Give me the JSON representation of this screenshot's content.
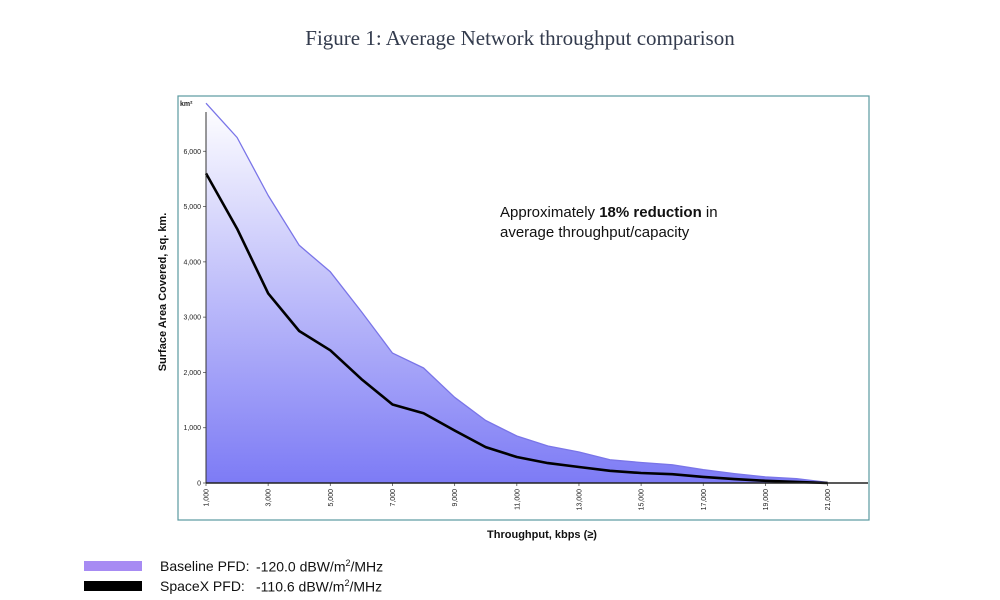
{
  "figure_title": "Figure 1: Average Network throughput comparison",
  "legend": [
    {
      "label": "Baseline PFD:",
      "value": "-120.0 dBW/m",
      "sup": "2",
      "unit": "/MHz",
      "color": "#a78bf3"
    },
    {
      "label": "SpaceX  PFD:",
      "value": "-110.6 dBW/m",
      "sup": "2",
      "unit": "/MHz",
      "color": "#000000"
    }
  ],
  "chart_data": {
    "type": "area",
    "xlabel": "Throughput, kbps (≥)",
    "ylabel": "Surface Area Covered, sq. km.",
    "yunit_label": "km²",
    "xlim": [
      1000,
      22300
    ],
    "ylim": [
      0,
      7000
    ],
    "xticks": [
      "1,000",
      "3,000",
      "5,000",
      "7,000",
      "9,000",
      "11,000",
      "13,000",
      "15,000",
      "17,000",
      "19,000",
      "21,000"
    ],
    "yticks": [
      "0",
      "1,000",
      "2,000",
      "3,000",
      "4,000",
      "5,000",
      "6,000"
    ],
    "annotation": {
      "pre": "Approximately ",
      "bold": "18% reduction",
      "post": " in",
      "line2": "average throughput/capacity"
    },
    "series": [
      {
        "name": "Baseline PFD",
        "color": "#7a75e8",
        "x": [
          1000,
          2000,
          3000,
          4000,
          5000,
          6000,
          7000,
          8000,
          9000,
          10000,
          11000,
          12000,
          13000,
          14000,
          15000,
          16000,
          17000,
          18000,
          19000,
          20000,
          21000
        ],
        "y": [
          6870,
          6250,
          5200,
          4300,
          3820,
          3100,
          2350,
          2080,
          1550,
          1130,
          850,
          670,
          560,
          420,
          370,
          330,
          240,
          170,
          110,
          80,
          10
        ]
      },
      {
        "name": "SpaceX PFD",
        "color": "#000000",
        "x": [
          1000,
          2000,
          3000,
          4000,
          5000,
          6000,
          7000,
          8000,
          9000,
          10000,
          11000,
          12000,
          13000,
          14000,
          15000,
          16000,
          17000,
          18000,
          19000,
          20000,
          21000
        ],
        "y": [
          5600,
          4600,
          3430,
          2750,
          2400,
          1880,
          1420,
          1260,
          950,
          650,
          470,
          360,
          290,
          220,
          180,
          160,
          110,
          70,
          40,
          20,
          0
        ]
      }
    ]
  }
}
